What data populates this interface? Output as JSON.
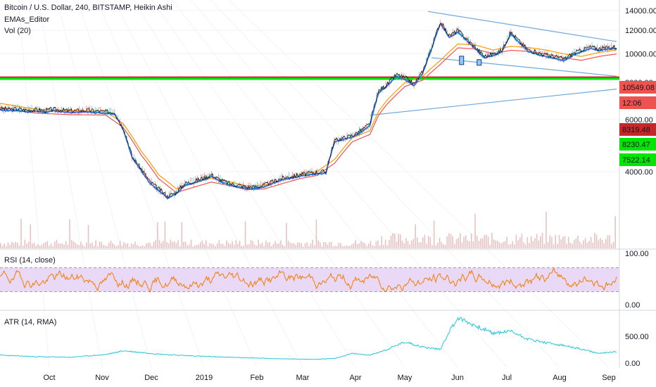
{
  "header": {
    "title": "Bitcoin / U.S. Dollar, 240, BITSTAMP, Heikin Ashi",
    "indicator_1": "EMAs_Editor",
    "indicator_2": "Vol (20)"
  },
  "colors": {
    "price_line": "#131722",
    "ema_fast": "#2962ff",
    "ema_mid": "#26a69a",
    "ema_slow": "#ef5350",
    "ema_slow2": "#ff9800",
    "red_level": "#c62828",
    "green_level": "#00e600",
    "trendline": "#6fa8dc",
    "rsi_line": "#f57c00",
    "rsi_band": "#e9d9f7",
    "atr_line": "#26c6da",
    "volume": "#e0b3b3"
  },
  "chart_data": [
    {
      "type": "line",
      "title": "Bitcoin / U.S. Dollar, 240, BITSTAMP, Heikin Ashi",
      "x_ticks": [
        "Oct",
        "Nov",
        "Dec",
        "2019",
        "Feb",
        "Mar",
        "Apr",
        "May",
        "Jun",
        "Jul",
        "Aug",
        "Sep"
      ],
      "y_ticks": [
        "4000.00",
        "6000.00",
        "8000.00",
        "10000.00",
        "12000.00",
        "14000.00"
      ],
      "ylim": [
        2200,
        15200
      ],
      "scale": "log",
      "grid": true,
      "series": [
        {
          "x": [
            0,
            5,
            10,
            15,
            20,
            25,
            30,
            35,
            40,
            45,
            50,
            55,
            60,
            65,
            70,
            75,
            80,
            85,
            90,
            95,
            100,
            105,
            110,
            115,
            120,
            125,
            130,
            135,
            140,
            145,
            150,
            155,
            160,
            165,
            170,
            175,
            180,
            185,
            190,
            195,
            200,
            205,
            210,
            215,
            220,
            225,
            230,
            235,
            240,
            245,
            250,
            255,
            260,
            265,
            270,
            275,
            280,
            285,
            290,
            295,
            300,
            305,
            310,
            315,
            320,
            325,
            330,
            335,
            340,
            345,
            350
          ],
          "y": [
            6550,
            6500,
            6520,
            6450,
            6480,
            6420,
            6500,
            6460,
            6420,
            6430,
            6450,
            6400,
            6380,
            6350,
            5600,
            4500,
            4100,
            3700,
            3500,
            3300,
            3400,
            3650,
            3700,
            3800,
            3900,
            3750,
            3650,
            3600,
            3550,
            3550,
            3600,
            3700,
            3800,
            3850,
            3900,
            3950,
            3980,
            4000,
            5100,
            5200,
            5300,
            5500,
            5800,
            7500,
            7900,
            8500,
            8300,
            7900,
            8700,
            10500,
            12800,
            11500,
            12000,
            11200,
            10500,
            9800,
            10000,
            10300,
            11800,
            11000,
            10300,
            10100,
            9900,
            9800,
            9600,
            10000,
            10300,
            10549,
            10400,
            10500,
            10549
          ]
        },
        {
          "name": "EMA",
          "x": [
            0,
            20,
            40,
            60,
            70,
            80,
            90,
            100,
            110,
            120,
            130,
            140,
            150,
            160,
            170,
            180,
            190,
            200,
            210,
            215,
            220,
            230,
            240,
            250,
            260,
            270,
            280,
            290,
            300,
            310,
            320,
            330,
            340,
            350
          ],
          "y": [
            6800,
            6500,
            6420,
            6400,
            5800,
            4700,
            3900,
            3500,
            3650,
            3800,
            3700,
            3580,
            3600,
            3750,
            3900,
            4000,
            4400,
            5200,
            5500,
            6400,
            7000,
            8000,
            8400,
            9500,
            10800,
            10700,
            10300,
            10600,
            10500,
            10300,
            10000,
            9800,
            10100,
            10300
          ]
        }
      ],
      "annotations": [
        {
          "label": "10549.08",
          "color": "#ef5350"
        },
        {
          "label": "12:06",
          "color": "#ef5350"
        },
        {
          "label": "8319.48",
          "color": "#c62828"
        },
        {
          "label": "8230.47",
          "color": "#00e600"
        },
        {
          "label": "7522.14",
          "color": "#00e600"
        }
      ],
      "levels": [
        {
          "value": 8319.48,
          "color": "#c62828"
        },
        {
          "value": 8230.47,
          "color": "#00e600"
        }
      ]
    },
    {
      "type": "line",
      "title": "RSI (14, close)",
      "y_ticks": [
        "0.00",
        "100.00"
      ],
      "ylim": [
        0,
        100
      ],
      "band": [
        30,
        70
      ]
    },
    {
      "type": "line",
      "title": "ATR (14, RMA)",
      "y_ticks": [
        "0.00",
        "500.00"
      ],
      "ylim": [
        0,
        900
      ],
      "series": [
        {
          "x": [
            0,
            20,
            40,
            60,
            70,
            80,
            90,
            100,
            120,
            140,
            160,
            180,
            190,
            200,
            210,
            220,
            230,
            240,
            250,
            255,
            260,
            270,
            280,
            290,
            300,
            310,
            320,
            330,
            340,
            350
          ],
          "y": [
            150,
            120,
            110,
            160,
            230,
            200,
            170,
            150,
            120,
            100,
            80,
            70,
            90,
            180,
            150,
            260,
            400,
            300,
            260,
            600,
            850,
            700,
            560,
            600,
            450,
            380,
            330,
            260,
            180,
            220
          ]
        }
      ]
    }
  ]
}
